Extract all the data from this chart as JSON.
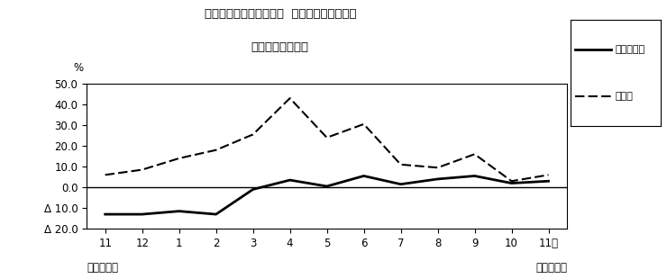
{
  "title_line1": "第２図　所定外労働時間  対前年同月比の推移",
  "title_line2": "（規模５人以上）",
  "x_labels": [
    "11",
    "12",
    "1",
    "2",
    "3",
    "4",
    "5",
    "6",
    "7",
    "8",
    "9",
    "10",
    "11月"
  ],
  "x_values": [
    0,
    1,
    2,
    3,
    4,
    5,
    6,
    7,
    8,
    9,
    10,
    11,
    12
  ],
  "survey_total": [
    -13.0,
    -13.0,
    -11.5,
    -13.0,
    -1.0,
    3.5,
    0.5,
    5.5,
    1.5,
    4.0,
    5.5,
    2.0,
    3.0
  ],
  "manufacturing": [
    6.0,
    8.5,
    14.0,
    18.0,
    25.5,
    43.0,
    24.0,
    30.5,
    11.0,
    9.5,
    16.0,
    3.0,
    6.0
  ],
  "ylim": [
    -20.0,
    50.0
  ],
  "yticks": [
    -20.0,
    -10.0,
    0.0,
    10.0,
    20.0,
    30.0,
    40.0,
    50.0
  ],
  "ytick_labels": [
    "Δ 20.0",
    "Δ 10.0",
    "0.0",
    "10.0",
    "20.0",
    "30.0",
    "40.0",
    "50.0"
  ],
  "ylabel_text": "%",
  "legend_labels": [
    "調査産業計",
    "製造業"
  ],
  "bottom_left": "平成２３年",
  "bottom_right": "平成２４年",
  "line_color": "#000000",
  "bg_color": "#ffffff",
  "plot_bg_color": "#ffffff"
}
